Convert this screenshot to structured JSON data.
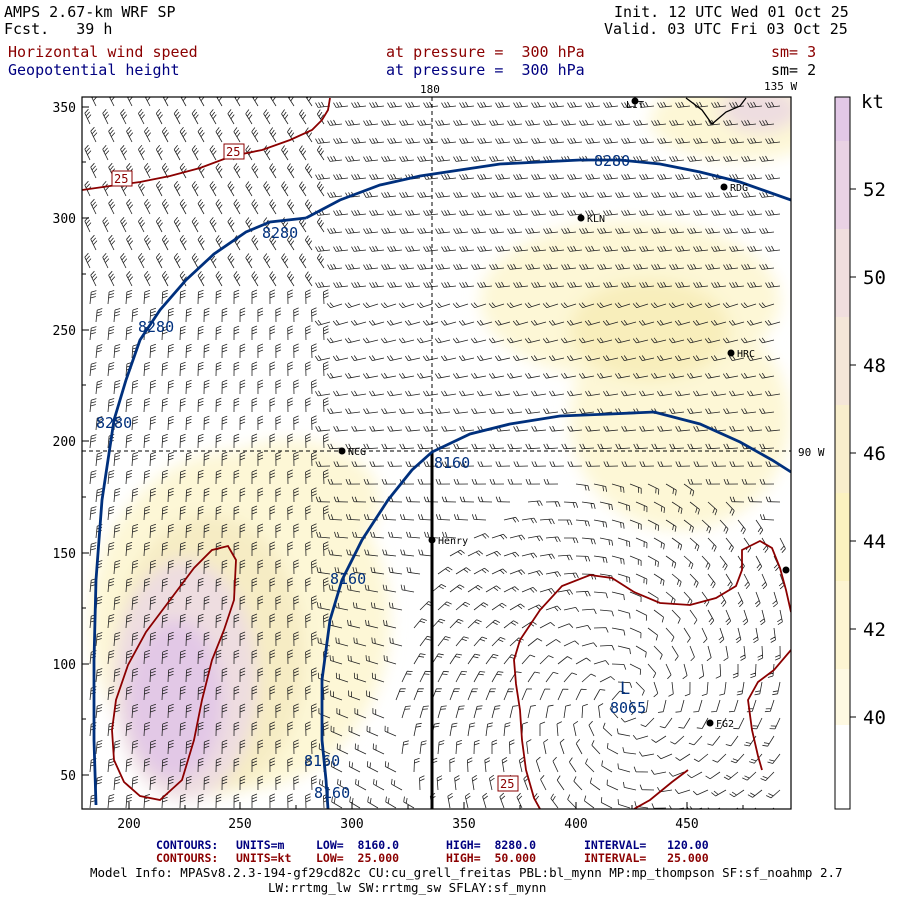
{
  "header": {
    "model": "AMPS 2.67-km WRF SP",
    "fcst": "Fcst.   39 h",
    "init": "Init. 12 UTC Wed 01 Oct 25",
    "valid": "Valid. 03 UTC Fri 03 Oct 25",
    "field1": "Horizontal wind speed",
    "field1_level": "at pressure =  300 hPa",
    "field1_sm": "sm= 3",
    "field2": "Geopotential height",
    "field2_level": "at pressure =  300 hPa",
    "field2_sm": "sm= 2"
  },
  "colors": {
    "red": "#8b0000",
    "blue": "#000080",
    "shade_light": "#fdf7d6",
    "shade_yellow": "#f8eebb",
    "shade_pink": "#eedde0",
    "shade_purple": "#e2c8e6"
  },
  "axes": {
    "x_ticks": [
      "200",
      "250",
      "300",
      "350",
      "400",
      "450"
    ],
    "y_ticks": [
      "350",
      "300",
      "250",
      "200",
      "150",
      "100",
      "50"
    ],
    "lon_top_180": "180",
    "lon_top_135": "135 W",
    "lat_right_90": "90 W"
  },
  "colorbar": {
    "unit": "kt",
    "levels": [
      "52",
      "50",
      "48",
      "46",
      "44",
      "42",
      "40"
    ]
  },
  "stations": [
    "LIT",
    "RDG",
    "KLN",
    "HRC",
    "NCG",
    "Henry",
    "FG2"
  ],
  "contour_labels": {
    "height": [
      "8280",
      "8280",
      "8280",
      "8280",
      "8280",
      "8160",
      "8160",
      "8160",
      "8160"
    ],
    "wind": [
      "25",
      "25",
      "25"
    ],
    "low_marker": "L",
    "low_value": "8065"
  },
  "footer": {
    "c1_label": "CONTOURS:",
    "c1_units": "UNITS=m",
    "c1_low": "LOW=  8160.0",
    "c1_high": "HIGH=  8280.0",
    "c1_int": "INTERVAL=   120.00",
    "c2_label": "CONTOURS:",
    "c2_units": "UNITS=kt",
    "c2_low": "LOW=  25.000",
    "c2_high": "HIGH=  50.000",
    "c2_int": "INTERVAL=   25.000",
    "model_info": "Model Info: MPASv8.2.3-194-gf29cd82c CU:cu_grell_freitas PBL:bl_mynn MP:mp_thompson SF:sf_noahmp 2.7",
    "model_info2": "LW:rrtmg_lw SW:rrtmg_sw SFLAY:sf_mynn"
  }
}
